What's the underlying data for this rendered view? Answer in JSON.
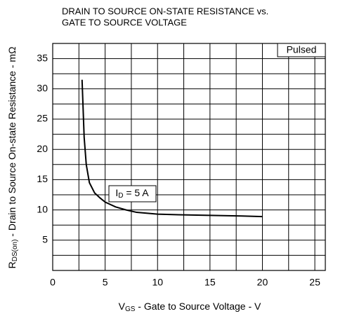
{
  "chart_data": {
    "type": "line",
    "title": [
      "DRAIN TO SOURCE ON-STATE RESISTANCE vs.",
      "GATE TO SOURCE VOLTAGE"
    ],
    "y_label": {
      "symbol": "R",
      "subscript": "DS(on)",
      "text": " -  Drain to Source On-state Resistance - mΩ"
    },
    "x_label": {
      "symbol": "V",
      "subscript": "GS",
      "text": " -  Gate to Source Voltage  - V"
    },
    "annotations": [
      "Pulsed",
      {
        "symbol": "I",
        "subscript": "D",
        "text": " = 5 A"
      }
    ],
    "x": [
      2.8,
      3,
      3.2,
      3.5,
      4,
      4.5,
      5,
      6,
      7,
      8,
      10,
      12,
      15,
      18,
      20
    ],
    "values": [
      31.5,
      22,
      17.5,
      14.5,
      12.8,
      12,
      11.3,
      10.5,
      10,
      9.6,
      9.3,
      9.2,
      9.1,
      9.0,
      8.9
    ],
    "color": "#000000",
    "xlim": [
      0,
      26
    ],
    "xticks": [
      0,
      5,
      10,
      15,
      20,
      25
    ],
    "x_minor_ticks": [
      2.5,
      7.5,
      12.5,
      17.5,
      22.5
    ],
    "ylim": [
      0,
      37.5
    ],
    "yticks": [
      5,
      10,
      15,
      20,
      25,
      30,
      35
    ],
    "y_minor_ticks": [
      2.5,
      7.5,
      12.5,
      17.5,
      22.5,
      27.5,
      32.5
    ],
    "grid": true
  }
}
